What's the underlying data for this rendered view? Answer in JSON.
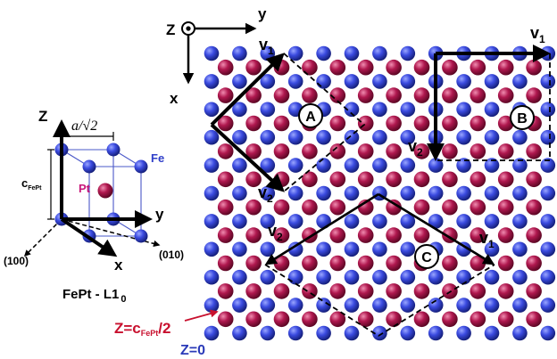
{
  "colors": {
    "fe_atom": "#2f3fc9",
    "pt_atom": "#a8164a",
    "axis": "#000000",
    "arrow_label": "#c8102e",
    "z0_label": "#2a3ab8"
  },
  "unit_cell": {
    "z_axis": "Z",
    "y_axis": "y",
    "x_axis": "x",
    "a_label": "a/√2",
    "c_label": "c",
    "c_sub": "FePt",
    "fe_label": "Fe",
    "pt_label": "Pt",
    "dir_100": "(100)",
    "dir_010": "(010)",
    "phase_main": "FePt - L1",
    "phase_sub": "0"
  },
  "lattice_axes": {
    "z_axis": "Z",
    "y_axis": "y",
    "x_axis": "x"
  },
  "cells": {
    "a": {
      "name": "A",
      "v1": "v",
      "v1_sub": "1",
      "v2": "v",
      "v2_sub": "2"
    },
    "b": {
      "name": "B",
      "v1": "v",
      "v1_sub": "1",
      "v2": "v",
      "v2_sub": "2"
    },
    "c": {
      "name": "C",
      "v1": "v",
      "v1_sub": "1",
      "v2": "v",
      "v2_sub": "2"
    }
  },
  "layer_labels": {
    "pt_layer_main": "Z=c",
    "pt_layer_sub": "FePt",
    "pt_layer_tail": "/2",
    "fe_layer": "Z=0"
  }
}
